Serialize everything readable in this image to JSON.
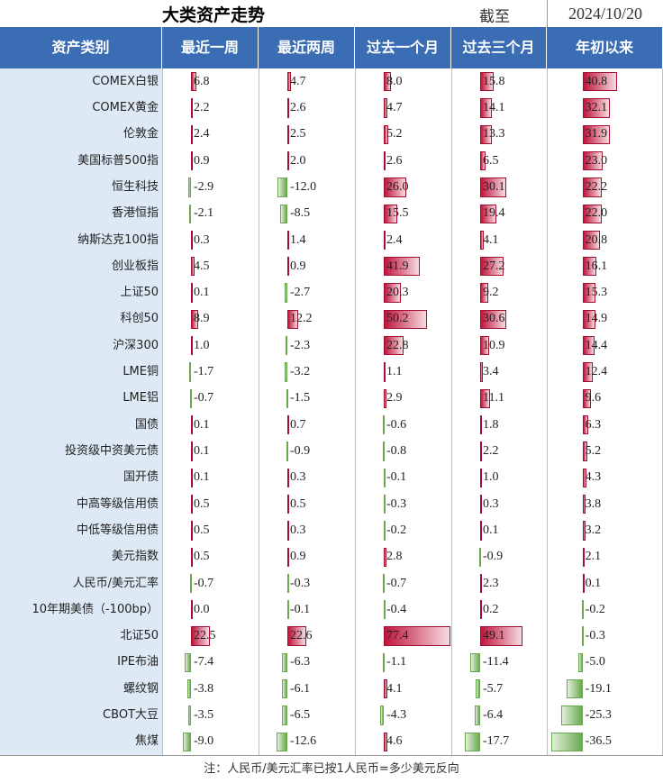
{
  "header": {
    "title": "大类资产走势",
    "as_of_label": "截至",
    "date": "2024/10/20"
  },
  "table": {
    "columns": [
      "资产类别",
      "最近一周",
      "最近两周",
      "过去一个月",
      "过去三个月",
      "年初以来"
    ],
    "rows": [
      [
        "COMEX白银",
        "6.8",
        "4.7",
        "8.0",
        "15.8",
        "40.8"
      ],
      [
        "COMEX黄金",
        "2.2",
        "2.6",
        "4.7",
        "14.1",
        "32.1"
      ],
      [
        "伦敦金",
        "2.4",
        "2.5",
        "5.2",
        "13.3",
        "31.9"
      ],
      [
        "美国标普500指",
        "0.9",
        "2.0",
        "2.6",
        "6.5",
        "23.0"
      ],
      [
        "恒生科技",
        "-2.9",
        "-12.0",
        "26.0",
        "30.1",
        "22.2"
      ],
      [
        "香港恒指",
        "-2.1",
        "-8.5",
        "15.5",
        "19.4",
        "22.0"
      ],
      [
        "纳斯达克100指",
        "0.3",
        "1.4",
        "2.4",
        "4.1",
        "20.8"
      ],
      [
        "创业板指",
        "4.5",
        "0.9",
        "41.9",
        "27.2",
        "16.1"
      ],
      [
        "上证50",
        "0.1",
        "-2.7",
        "20.3",
        "9.2",
        "15.3"
      ],
      [
        "科创50",
        "8.9",
        "12.2",
        "50.2",
        "30.6",
        "14.9"
      ],
      [
        "沪深300",
        "1.0",
        "-2.3",
        "22.8",
        "10.9",
        "14.4"
      ],
      [
        "LME铜",
        "-1.7",
        "-3.2",
        "1.1",
        "3.4",
        "12.4"
      ],
      [
        "LME铝",
        "-0.7",
        "-1.5",
        "2.9",
        "11.1",
        "9.6"
      ],
      [
        "国债",
        "0.1",
        "0.7",
        "-0.6",
        "1.8",
        "6.3"
      ],
      [
        "投资级中资美元债",
        "0.1",
        "-0.9",
        "-0.8",
        "2.2",
        "5.2"
      ],
      [
        "国开债",
        "0.1",
        "0.3",
        "-0.1",
        "1.0",
        "4.3"
      ],
      [
        "中高等级信用债",
        "0.5",
        "0.5",
        "-0.3",
        "0.3",
        "3.8"
      ],
      [
        "中低等级信用债",
        "0.5",
        "0.3",
        "-0.2",
        "0.1",
        "3.2"
      ],
      [
        "美元指数",
        "0.5",
        "0.9",
        "2.8",
        "-0.9",
        "2.1"
      ],
      [
        "人民币/美元汇率",
        "-0.7",
        "-0.3",
        "-0.7",
        "2.3",
        "0.1"
      ],
      [
        "10年期美债（-100bp）",
        "0.0",
        "-0.1",
        "-0.4",
        "0.2",
        "-0.2"
      ],
      [
        "北证50",
        "22.5",
        "22.6",
        "77.4",
        "49.1",
        "-0.3"
      ],
      [
        "IPE布油",
        "-7.4",
        "-6.3",
        "-1.1",
        "-11.4",
        "-5.0"
      ],
      [
        "螺纹钢",
        "-3.8",
        "-6.1",
        "4.1",
        "-5.7",
        "-19.1"
      ],
      [
        "CBOT大豆",
        "-3.5",
        "-6.5",
        "-4.3",
        "-6.4",
        "-25.3"
      ],
      [
        "焦煤",
        "-9.0",
        "-12.6",
        "4.6",
        "-17.7",
        "-36.5"
      ]
    ]
  },
  "footnote": "注：人民币/美元汇率已按1人民币=多少美元反向"
}
